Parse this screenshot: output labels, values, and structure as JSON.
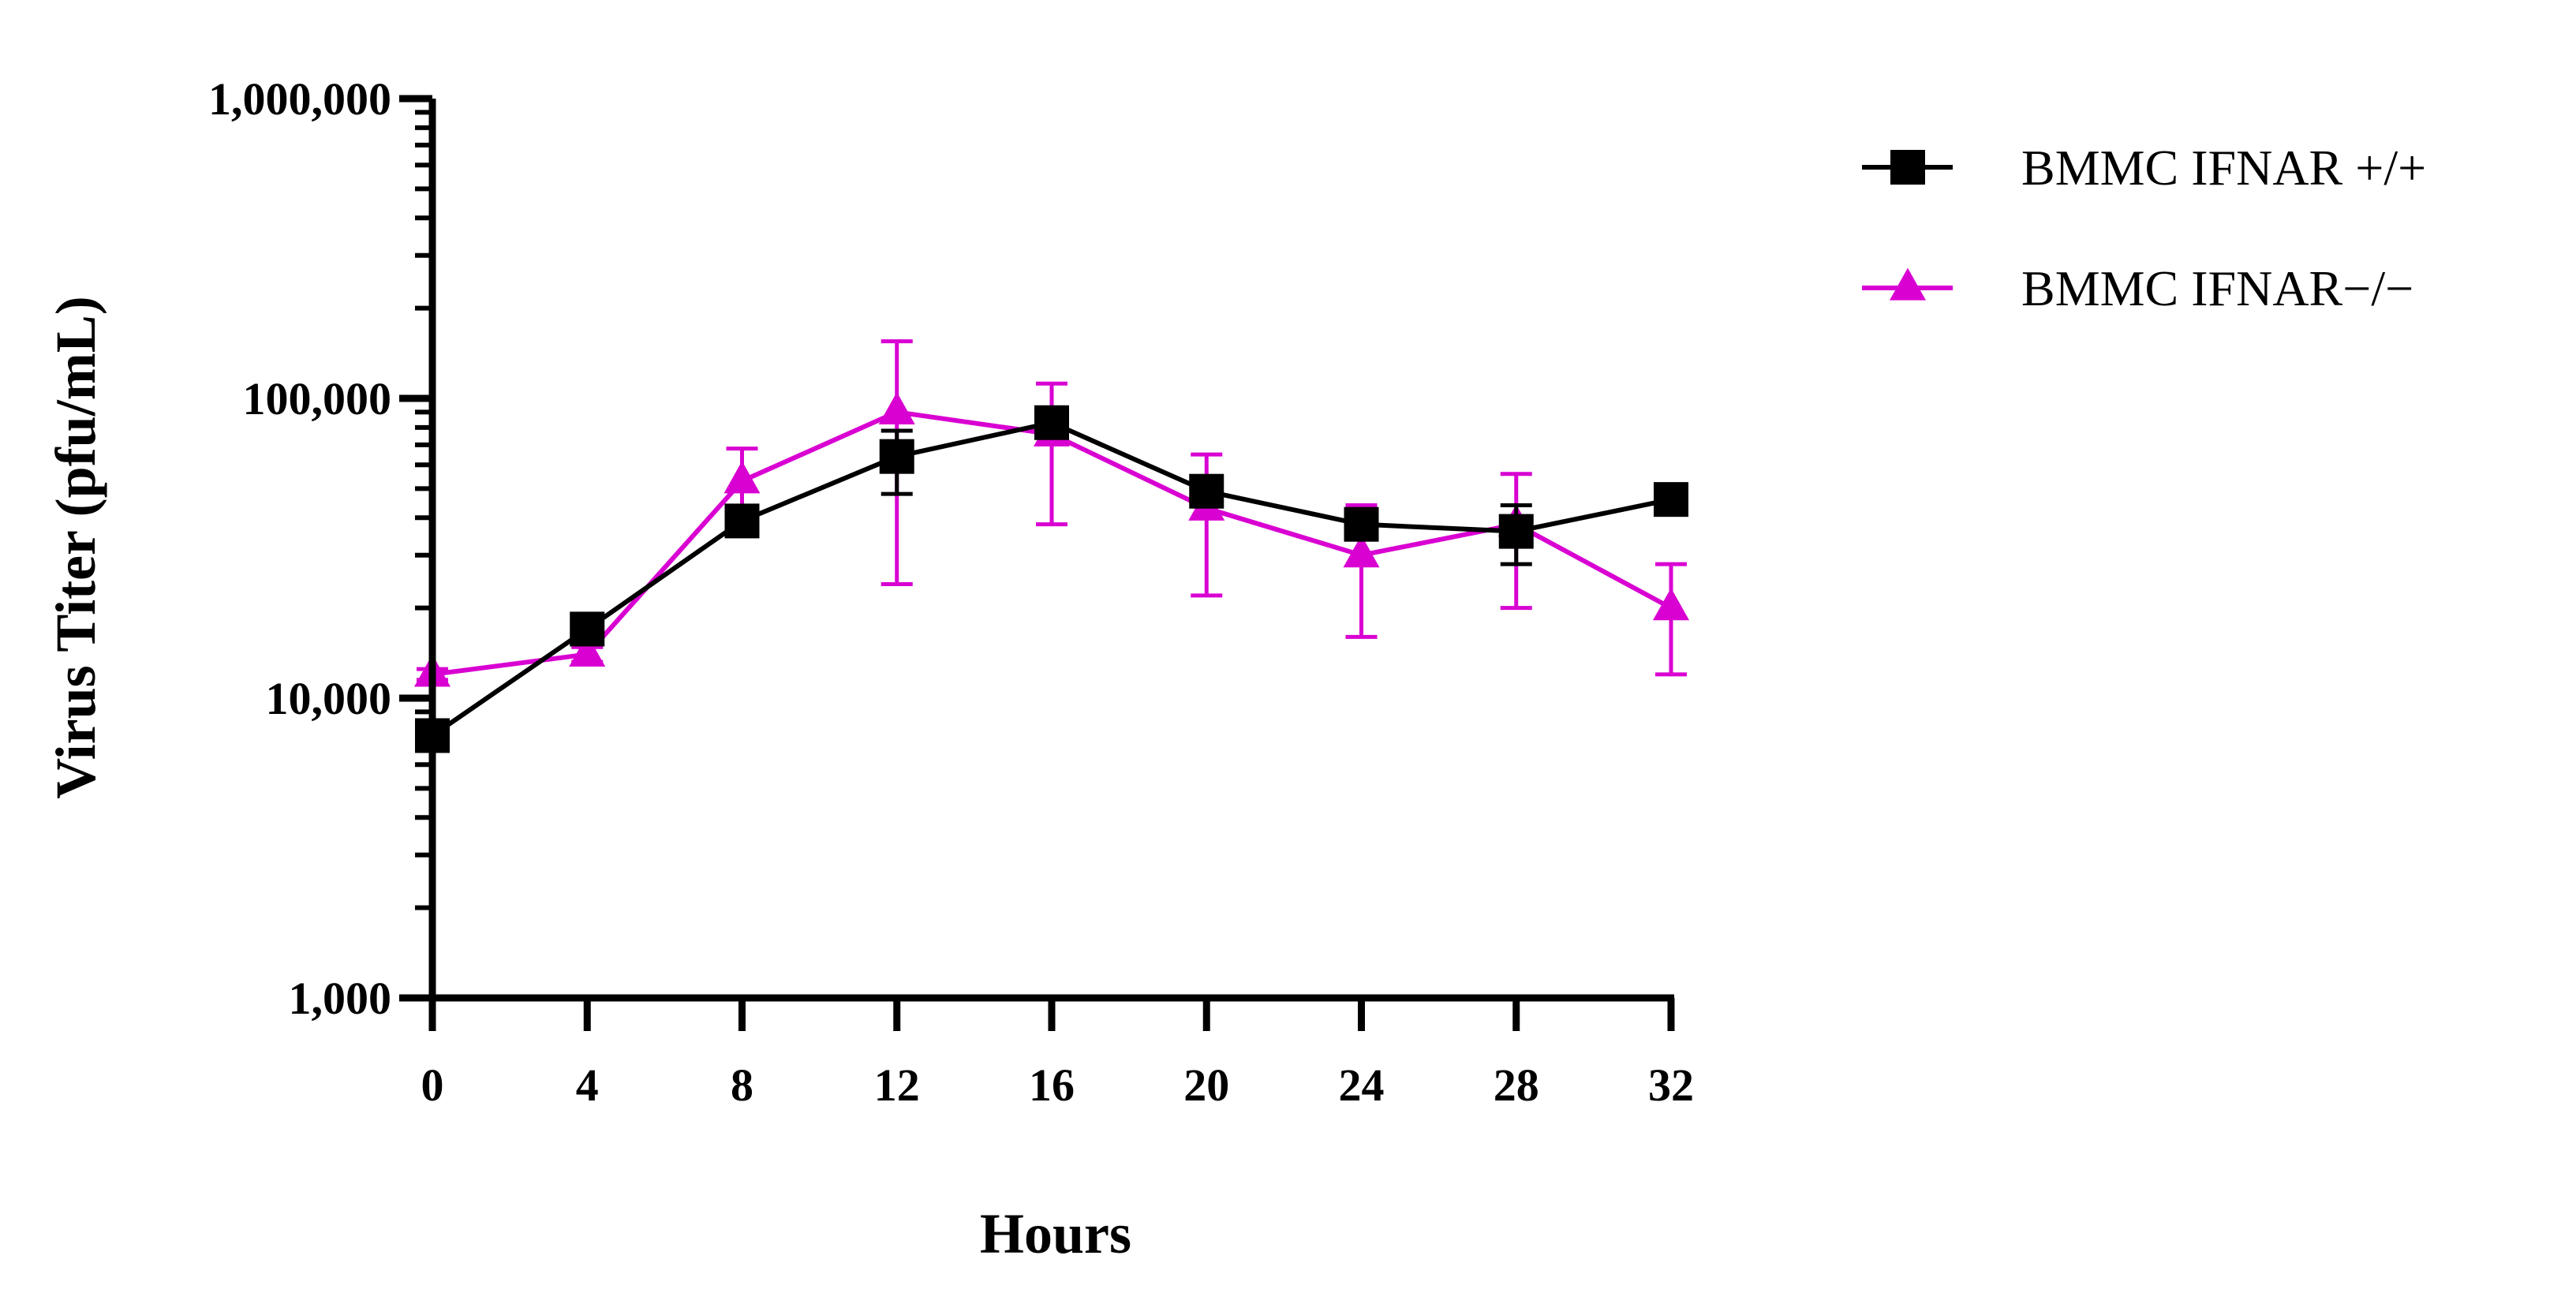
{
  "chart_data": {
    "type": "line",
    "title": "",
    "xlabel": "Hours",
    "ylabel": "Virus Titer (pfu/mL)",
    "yscale": "log",
    "ylim": [
      1000,
      1000000
    ],
    "xlim": [
      0,
      32
    ],
    "x": [
      0,
      4,
      8,
      12,
      16,
      20,
      24,
      28,
      32
    ],
    "x_tick_labels": [
      "0",
      "4",
      "8",
      "12",
      "16",
      "20",
      "24",
      "28",
      "32"
    ],
    "y_ticks": [
      1000,
      10000,
      100000,
      1000000
    ],
    "y_tick_labels": [
      "1,000",
      "10,000",
      "100,000",
      "1,000,000"
    ],
    "legend_position": "top-right",
    "series": [
      {
        "name": "BMMC IFNAR +/+",
        "color": "#000000",
        "marker": "square",
        "values": [
          7500,
          17000,
          39000,
          64000,
          83000,
          49000,
          38000,
          36000,
          46000
        ],
        "error_low": [
          6800,
          16000,
          36000,
          48000,
          75000,
          46000,
          36000,
          28000,
          44000
        ],
        "error_high": [
          8200,
          18000,
          42000,
          78000,
          90000,
          52000,
          40000,
          44000,
          48000
        ]
      },
      {
        "name": "BMMC IFNAR−/−",
        "color": "#d900d2",
        "marker": "triangle",
        "values": [
          12000,
          14000,
          53000,
          90000,
          76000,
          43000,
          30000,
          38000,
          20000
        ],
        "error_low": [
          11500,
          13200,
          40000,
          24000,
          38000,
          22000,
          16000,
          20000,
          12000
        ],
        "error_high": [
          12500,
          14800,
          68000,
          155000,
          112000,
          65000,
          44000,
          56000,
          28000
        ]
      }
    ]
  }
}
